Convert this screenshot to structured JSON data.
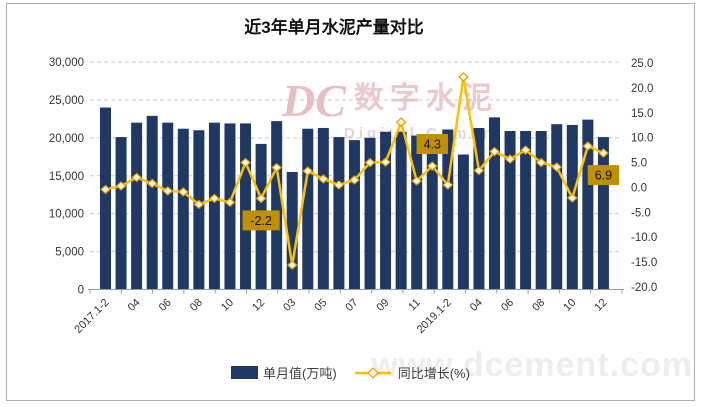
{
  "title": "近3年单月水泥产量对比",
  "watermark": {
    "logo": "DC",
    "cn": "数字水泥",
    "en": "Digital Cement",
    "site": "www.dcement.com"
  },
  "legend": {
    "bar_label": "单月值(万吨)",
    "line_label": "同比增长(%)"
  },
  "colors": {
    "bar": "#1F3864",
    "line": "#FFC000",
    "marker_fill": "#FFF6D9",
    "marker_stroke": "#D99E00",
    "label_box": "#BF9000",
    "label_text": "#151001",
    "gridline": "#c9c9c9",
    "axis": "#9a9a9a",
    "tick_text": "#333333"
  },
  "chart_data": {
    "type": "bar+line",
    "categories": [
      "2017.1-2",
      "03",
      "04",
      "05",
      "06",
      "07",
      "08",
      "09",
      "10",
      "11",
      "12",
      "2018.1-2",
      "03",
      "04",
      "05",
      "06",
      "07",
      "08",
      "09",
      "10",
      "11",
      "12",
      "2019.1-2",
      "03",
      "04",
      "05",
      "06",
      "07",
      "08",
      "09",
      "10",
      "11",
      "12"
    ],
    "x_tick_labels": [
      "2017.1-2",
      "04",
      "06",
      "08",
      "10",
      "12",
      "03",
      "05",
      "07",
      "09",
      "11",
      "2019.1-2",
      "04",
      "06",
      "08",
      "10",
      "12"
    ],
    "series": [
      {
        "name": "单月值(万吨)",
        "type": "bar",
        "axis": "left",
        "values": [
          24000,
          20100,
          22000,
          22900,
          22000,
          21200,
          21000,
          22000,
          21900,
          21900,
          19200,
          22200,
          15500,
          21200,
          21300,
          20100,
          19700,
          20000,
          20800,
          20800,
          20300,
          19800,
          21100,
          17800,
          21300,
          22700,
          20900,
          20900,
          20900,
          21800,
          21700,
          22400,
          20100
        ]
      },
      {
        "name": "同比增长(%)",
        "type": "line",
        "axis": "right",
        "values": [
          -0.4,
          0.3,
          2.0,
          0.8,
          -0.7,
          -0.9,
          -3.4,
          -2.2,
          -3.0,
          5.0,
          -2.2,
          4.0,
          -15.6,
          3.3,
          1.7,
          0.5,
          1.5,
          5.0,
          5.1,
          13.1,
          1.3,
          4.3,
          0.5,
          22.2,
          3.4,
          7.2,
          5.7,
          7.5,
          5.0,
          4.1,
          -2.1,
          8.3,
          6.9
        ]
      }
    ],
    "left_axis": {
      "min": 0,
      "max": 30000,
      "step": 5000,
      "tick_labels": [
        "0",
        "5,000",
        "10,000",
        "15,000",
        "20,000",
        "25,000",
        "30,000"
      ]
    },
    "right_axis": {
      "min": -20,
      "max": 25,
      "step": 5,
      "tick_labels": [
        "-20.0",
        "-15.0",
        "-10.0",
        "-5.0",
        "0.0",
        "5.0",
        "10.0",
        "15.0",
        "20.0",
        "25.0"
      ]
    },
    "point_labels": [
      {
        "index": 10,
        "text": "-2.2",
        "position": "below"
      },
      {
        "index": 21,
        "text": "4.3",
        "position": "above"
      },
      {
        "index": 32,
        "text": "6.9",
        "position": "below"
      }
    ],
    "grid": "horizontal-dashed",
    "legend_position": "bottom"
  }
}
